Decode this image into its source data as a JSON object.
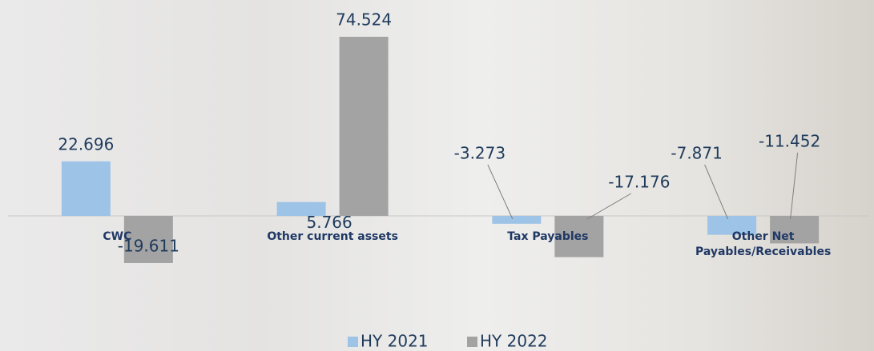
{
  "chart_data": {
    "type": "bar",
    "categories": [
      "CWC",
      "Other current assets",
      "Tax Payables",
      "Other Net Payables/Receivables"
    ],
    "series": [
      {
        "name": "HY 2021",
        "color": "#9dc3e6",
        "values": [
          22.696,
          5.766,
          -3.273,
          -7.871
        ]
      },
      {
        "name": "HY 2022",
        "color": "#a3a3a3",
        "values": [
          -19.611,
          74.524,
          -17.176,
          -11.452
        ]
      }
    ],
    "legend": "bottom"
  }
}
